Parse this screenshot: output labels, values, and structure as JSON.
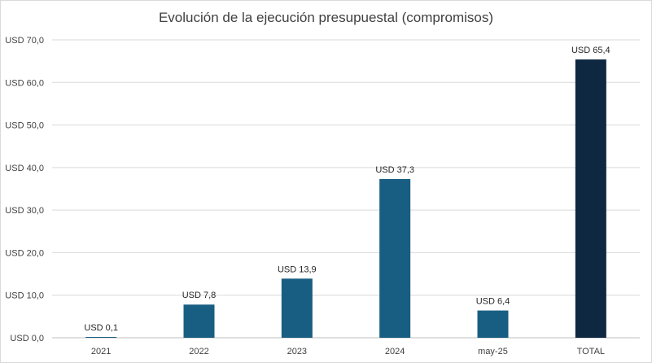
{
  "chart_data": {
    "type": "bar",
    "title": "Evolución de la ejecución presupuestal (compromisos)",
    "xlabel": "",
    "ylabel": "",
    "categories": [
      "2021",
      "2022",
      "2023",
      "2024",
      "may-25",
      "TOTAL"
    ],
    "values": [
      0.1,
      7.8,
      13.9,
      37.3,
      6.4,
      65.4
    ],
    "data_labels": [
      "USD 0,1",
      "USD 7,8",
      "USD 13,9",
      "USD 37,3",
      "USD 6,4",
      "USD 65,4"
    ],
    "ylim": [
      0,
      70
    ],
    "y_ticks": [
      0,
      10,
      20,
      30,
      40,
      50,
      60,
      70
    ],
    "y_tick_labels": [
      "USD 0,0",
      "USD 10,0",
      "USD 20,0",
      "USD 30,0",
      "USD 40,0",
      "USD 50,0",
      "USD 60,0",
      "USD 70,0"
    ],
    "grid": true,
    "legend": "none",
    "colors": {
      "bar": "#185E82",
      "total_bar": "#0E2841",
      "grid": "#d9d9d9",
      "axis": "#bfbfbf"
    }
  }
}
